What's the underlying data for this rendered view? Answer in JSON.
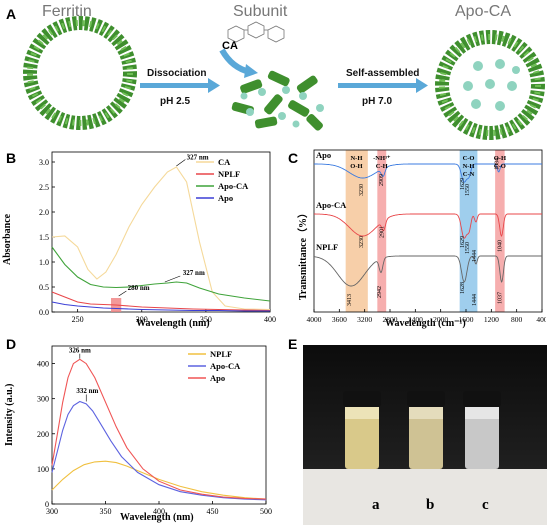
{
  "panelA": {
    "letter": "A",
    "titles": {
      "ferritin": "Ferritin",
      "subunit": "Subunit",
      "apoca": "Apo-CA"
    },
    "ca_label": "CA",
    "arrow1": {
      "top": "Dissociation",
      "bottom": "pH 2.5"
    },
    "arrow2": {
      "top": "Self-assembled",
      "bottom": "pH 7.0"
    }
  },
  "panelB": {
    "letter": "B",
    "ylabel": "Absorbance",
    "xlabel": "Wavelength (nm)",
    "annotations": [
      "327 nm",
      "280 nm",
      "327 nm"
    ],
    "chart_data": {
      "type": "line",
      "xlim": [
        230,
        400
      ],
      "ylim": [
        0,
        3.2
      ],
      "xticks": [
        "250",
        "300",
        "350",
        "400"
      ],
      "yticks": [
        "0.0",
        "0.5",
        "1.0",
        "1.5",
        "2.0",
        "2.5",
        "3.0"
      ],
      "series": [
        {
          "name": "CA",
          "color": "#f5d99a",
          "x": [
            230,
            240,
            250,
            258,
            265,
            272,
            280,
            290,
            300,
            310,
            320,
            327,
            335,
            345,
            355,
            365,
            380,
            400
          ],
          "y": [
            1.5,
            1.52,
            1.3,
            0.85,
            0.66,
            0.8,
            1.15,
            1.7,
            2.15,
            2.5,
            2.8,
            2.9,
            2.6,
            1.4,
            0.4,
            0.12,
            0.06,
            0.05
          ]
        },
        {
          "name": "NPLF",
          "color": "#e8474a",
          "x": [
            230,
            240,
            250,
            260,
            270,
            280,
            290,
            300,
            320,
            340,
            360,
            380,
            400
          ],
          "y": [
            0.4,
            0.3,
            0.2,
            0.16,
            0.15,
            0.14,
            0.12,
            0.1,
            0.08,
            0.06,
            0.05,
            0.04,
            0.03
          ]
        },
        {
          "name": "Apo-CA",
          "color": "#3fa33a",
          "x": [
            230,
            240,
            250,
            260,
            270,
            280,
            290,
            300,
            310,
            320,
            327,
            335,
            345,
            360,
            380,
            400
          ],
          "y": [
            1.3,
            0.95,
            0.7,
            0.55,
            0.5,
            0.49,
            0.5,
            0.53,
            0.56,
            0.58,
            0.6,
            0.58,
            0.48,
            0.36,
            0.28,
            0.22
          ]
        },
        {
          "name": "Apo",
          "color": "#3b3fd6",
          "x": [
            230,
            240,
            250,
            260,
            270,
            280,
            290,
            300,
            320,
            340,
            360,
            380,
            400
          ],
          "y": [
            0.2,
            0.15,
            0.12,
            0.1,
            0.08,
            0.07,
            0.06,
            0.05,
            0.04,
            0.03,
            0.03,
            0.02,
            0.02
          ]
        }
      ]
    }
  },
  "panelC": {
    "letter": "C",
    "ylabel": "Transmittance（%）",
    "xlabel": "Wavelength (cm⁻¹)",
    "sample_labels": [
      "Apo",
      "Apo-CA",
      "NPLF"
    ],
    "band_labels": [
      {
        "text": "N-H\nO-H"
      },
      {
        "text": "-NH³⁺\nC-H"
      },
      {
        "text": "C-O\nN-H\nC-N"
      },
      {
        "text": "O-H\nC-O"
      }
    ],
    "peak_labels": [
      "3230",
      "2909",
      "1629",
      "1550",
      "1084",
      "3230",
      "2901",
      "1629",
      "1550",
      "1444",
      "1040",
      "3413",
      "2942",
      "1628",
      "1444",
      "1037"
    ],
    "chart_data": {
      "type": "line",
      "xlim": [
        4000,
        400
      ],
      "xticks": [
        "4000",
        "3600",
        "3200",
        "2800",
        "2400",
        "2000",
        "1600",
        "1200",
        "800",
        "400"
      ],
      "series": [
        {
          "name": "Apo",
          "color": "#3b7be0"
        },
        {
          "name": "Apo-CA",
          "color": "#e8474a"
        },
        {
          "name": "NPLF",
          "color": "#666666"
        }
      ]
    }
  },
  "panelD": {
    "letter": "D",
    "ylabel": "Intensity (a.u.)",
    "xlabel": "Wavelength (nm)",
    "annotations": [
      "326 nm",
      "332 nm"
    ],
    "chart_data": {
      "type": "line",
      "xlim": [
        300,
        500
      ],
      "ylim": [
        0,
        450
      ],
      "xticks": [
        "300",
        "350",
        "400",
        "450",
        "500"
      ],
      "yticks": [
        "0",
        "100",
        "200",
        "300",
        "400"
      ],
      "series": [
        {
          "name": "NPLF",
          "color": "#f0c040",
          "x": [
            300,
            310,
            320,
            330,
            340,
            350,
            360,
            370,
            380,
            400,
            420,
            440,
            460,
            480,
            500
          ],
          "y": [
            40,
            70,
            95,
            112,
            120,
            122,
            118,
            108,
            95,
            70,
            50,
            35,
            25,
            18,
            14
          ]
        },
        {
          "name": "Apo-CA",
          "color": "#5d63e0",
          "x": [
            300,
            305,
            310,
            315,
            320,
            326,
            332,
            338,
            345,
            355,
            365,
            380,
            400,
            420,
            440,
            460,
            480,
            500
          ],
          "y": [
            90,
            150,
            210,
            255,
            280,
            292,
            285,
            265,
            230,
            180,
            135,
            90,
            55,
            35,
            25,
            18,
            14,
            12
          ]
        },
        {
          "name": "Apo",
          "color": "#f05555",
          "x": [
            300,
            305,
            310,
            315,
            320,
            326,
            332,
            340,
            350,
            360,
            370,
            385,
            400,
            420,
            440,
            460,
            480,
            500
          ],
          "y": [
            110,
            200,
            290,
            360,
            400,
            412,
            400,
            360,
            290,
            220,
            160,
            100,
            65,
            40,
            28,
            20,
            16,
            14
          ]
        }
      ]
    }
  },
  "panelE": {
    "letter": "E",
    "vial_labels": [
      "a",
      "b",
      "c"
    ]
  }
}
